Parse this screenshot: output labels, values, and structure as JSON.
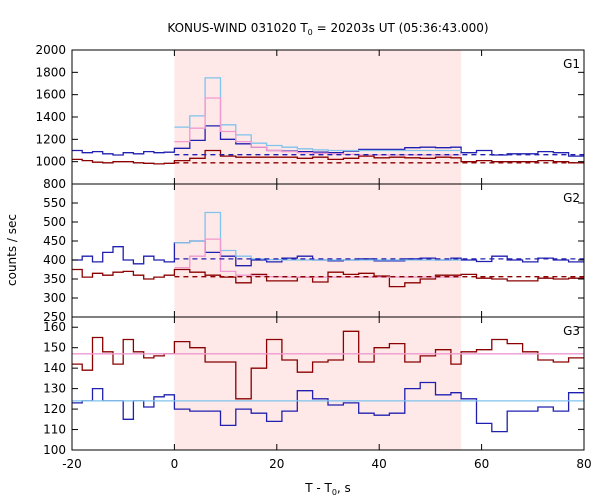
{
  "chart_data": {
    "type": "line",
    "title_main": "KONUS-WIND 031020 T",
    "title_sub": "0",
    "title_rest": " = 20203s UT (05:36:43.000)",
    "xlabel_main": "T - T",
    "xlabel_sub": "0",
    "xlabel_rest": ", s",
    "ylabel": "counts / sec",
    "xlim": [
      -20,
      80
    ],
    "xticks": [
      -20,
      0,
      20,
      40,
      60,
      80
    ],
    "shaded_interval": [
      0,
      56
    ],
    "colors": {
      "shade": "#ffe8e8",
      "blue": "#2020b0",
      "red": "#8b0000",
      "light_blue": "#7fc4ec",
      "pink": "#ef9ad0"
    },
    "panels": [
      {
        "label": "G1",
        "ylim": [
          800,
          2000
        ],
        "yticks": [
          800,
          1000,
          1200,
          1400,
          1600,
          1800,
          2000
        ],
        "bin_edges": [
          -20,
          -18,
          -16,
          -14,
          -12,
          -10,
          -8,
          -6,
          -4,
          -2,
          0,
          3,
          6,
          9,
          12,
          15,
          18,
          21,
          24,
          27,
          30,
          33,
          36,
          39,
          42,
          45,
          48,
          51,
          54,
          56,
          59,
          62,
          65,
          68,
          71,
          74,
          77,
          80
        ],
        "series": [
          {
            "key": "blue",
            "style": "step",
            "values": [
              1100,
              1080,
              1090,
              1070,
              1060,
              1080,
              1070,
              1090,
              1080,
              1085,
              1120,
              1190,
              1320,
              1200,
              1160,
              1130,
              1100,
              1095,
              1090,
              1085,
              1080,
              1095,
              1110,
              1110,
              1110,
              1125,
              1130,
              1125,
              1130,
              1080,
              1100,
              1060,
              1070,
              1070,
              1090,
              1080,
              1050
            ]
          },
          {
            "key": "red",
            "style": "step",
            "values": [
              1020,
              1010,
              995,
              990,
              1000,
              1000,
              990,
              985,
              980,
              985,
              1010,
              1030,
              1100,
              1050,
              1040,
              1040,
              1040,
              1040,
              1030,
              1040,
              1020,
              1030,
              1050,
              1035,
              1040,
              1035,
              1030,
              1040,
              1035,
              1000,
              1010,
              1000,
              1000,
              1000,
              1010,
              1000,
              990
            ]
          },
          {
            "key": "light_blue",
            "style": "step",
            "values": [
              null,
              null,
              null,
              null,
              null,
              null,
              null,
              null,
              null,
              null,
              1310,
              1410,
              1750,
              1330,
              1240,
              1165,
              1145,
              1130,
              1115,
              1105,
              1100,
              1100,
              1100,
              1100,
              1100,
              1100,
              1100,
              1100,
              1100,
              null,
              null,
              null,
              null,
              null,
              null,
              null,
              null
            ]
          },
          {
            "key": "pink",
            "style": "step",
            "values": [
              null,
              null,
              null,
              null,
              null,
              null,
              null,
              null,
              null,
              null,
              1180,
              1300,
              1570,
              1270,
              1180,
              1130,
              1100,
              1090,
              1080,
              1075,
              1070,
              1065,
              1060,
              1060,
              1060,
              1060,
              1060,
              1060,
              1060,
              null,
              null,
              null,
              null,
              null,
              null,
              null,
              null
            ]
          },
          {
            "key": "blue",
            "style": "dashed",
            "x": [
              0,
              80
            ],
            "values": [
              1062,
              1062
            ]
          },
          {
            "key": "red",
            "style": "dashed",
            "x": [
              0,
              80
            ],
            "values": [
              990,
              990
            ]
          }
        ]
      },
      {
        "label": "G2",
        "ylim": [
          250,
          600
        ],
        "yticks": [
          250,
          300,
          350,
          400,
          450,
          500,
          550
        ],
        "bin_edges": [
          -20,
          -18,
          -16,
          -14,
          -12,
          -10,
          -8,
          -6,
          -4,
          -2,
          0,
          3,
          6,
          9,
          12,
          15,
          18,
          21,
          24,
          27,
          30,
          33,
          36,
          39,
          42,
          45,
          48,
          51,
          54,
          56,
          59,
          62,
          65,
          68,
          71,
          74,
          77,
          80
        ],
        "series": [
          {
            "key": "blue",
            "style": "step",
            "values": [
              400,
              410,
              395,
              420,
              435,
              400,
              390,
              410,
              400,
              395,
              445,
              450,
              420,
              410,
              385,
              400,
              395,
              405,
              410,
              400,
              398,
              400,
              403,
              398,
              398,
              403,
              405,
              400,
              405,
              400,
              396,
              410,
              400,
              395,
              405,
              400,
              395
            ]
          },
          {
            "key": "red",
            "style": "step",
            "values": [
              375,
              355,
              365,
              360,
              368,
              370,
              360,
              350,
              355,
              360,
              375,
              368,
              360,
              355,
              340,
              362,
              345,
              345,
              355,
              342,
              368,
              362,
              365,
              358,
              330,
              340,
              350,
              360,
              360,
              362,
              352,
              350,
              345,
              345,
              352,
              350,
              352
            ]
          },
          {
            "key": "light_blue",
            "style": "step",
            "values": [
              null,
              null,
              null,
              null,
              null,
              null,
              null,
              null,
              null,
              null,
              445,
              450,
              525,
              425,
              410,
              403,
              401,
              400,
              400,
              400,
              400,
              400,
              400,
              400,
              400,
              400,
              400,
              400,
              400,
              null,
              null,
              null,
              null,
              null,
              null,
              null,
              null
            ]
          },
          {
            "key": "pink",
            "style": "step",
            "values": [
              null,
              null,
              null,
              null,
              null,
              null,
              null,
              null,
              null,
              null,
              380,
              410,
              455,
              370,
              360,
              358,
              356,
              355,
              355,
              355,
              355,
              355,
              355,
              355,
              355,
              355,
              355,
              355,
              355,
              null,
              null,
              null,
              null,
              null,
              null,
              null,
              null
            ]
          },
          {
            "key": "blue",
            "style": "dashed",
            "x": [
              0,
              80
            ],
            "values": [
              403,
              403
            ]
          },
          {
            "key": "red",
            "style": "dashed",
            "x": [
              0,
              80
            ],
            "values": [
              356,
              356
            ]
          }
        ]
      },
      {
        "label": "G3",
        "ylim": [
          100,
          165
        ],
        "yticks": [
          100,
          110,
          120,
          130,
          140,
          150,
          160
        ],
        "bin_edges": [
          -20,
          -18,
          -16,
          -14,
          -12,
          -10,
          -8,
          -6,
          -4,
          -2,
          0,
          3,
          6,
          9,
          12,
          15,
          18,
          21,
          24,
          27,
          30,
          33,
          36,
          39,
          42,
          45,
          48,
          51,
          54,
          56,
          59,
          62,
          65,
          68,
          71,
          74,
          77,
          80
        ],
        "series": [
          {
            "key": "red",
            "style": "step",
            "values": [
              142,
              139,
              155,
              148,
              142,
              154,
              148,
              145,
              146,
              147,
              153,
              150,
              143,
              143,
              125,
              140,
              154,
              144,
              138,
              143,
              144,
              158,
              143,
              150,
              152,
              143,
              146,
              149,
              142,
              148,
              149,
              154,
              152,
              148,
              144,
              143,
              145
            ]
          },
          {
            "key": "blue",
            "style": "step",
            "values": [
              123,
              124,
              130,
              124,
              124,
              115,
              124,
              121,
              126,
              127,
              120,
              119,
              119,
              112,
              120,
              118,
              114,
              119,
              129,
              125,
              122,
              123,
              118,
              117,
              118,
              130,
              133,
              127,
              128,
              125,
              113,
              109,
              119,
              119,
              121,
              119,
              128
            ]
          },
          {
            "key": "light_blue",
            "style": "line",
            "x": [
              -20,
              80
            ],
            "values": [
              124,
              124
            ]
          },
          {
            "key": "pink",
            "style": "line",
            "x": [
              -20,
              80
            ],
            "values": [
              147,
              147
            ]
          }
        ]
      }
    ]
  }
}
